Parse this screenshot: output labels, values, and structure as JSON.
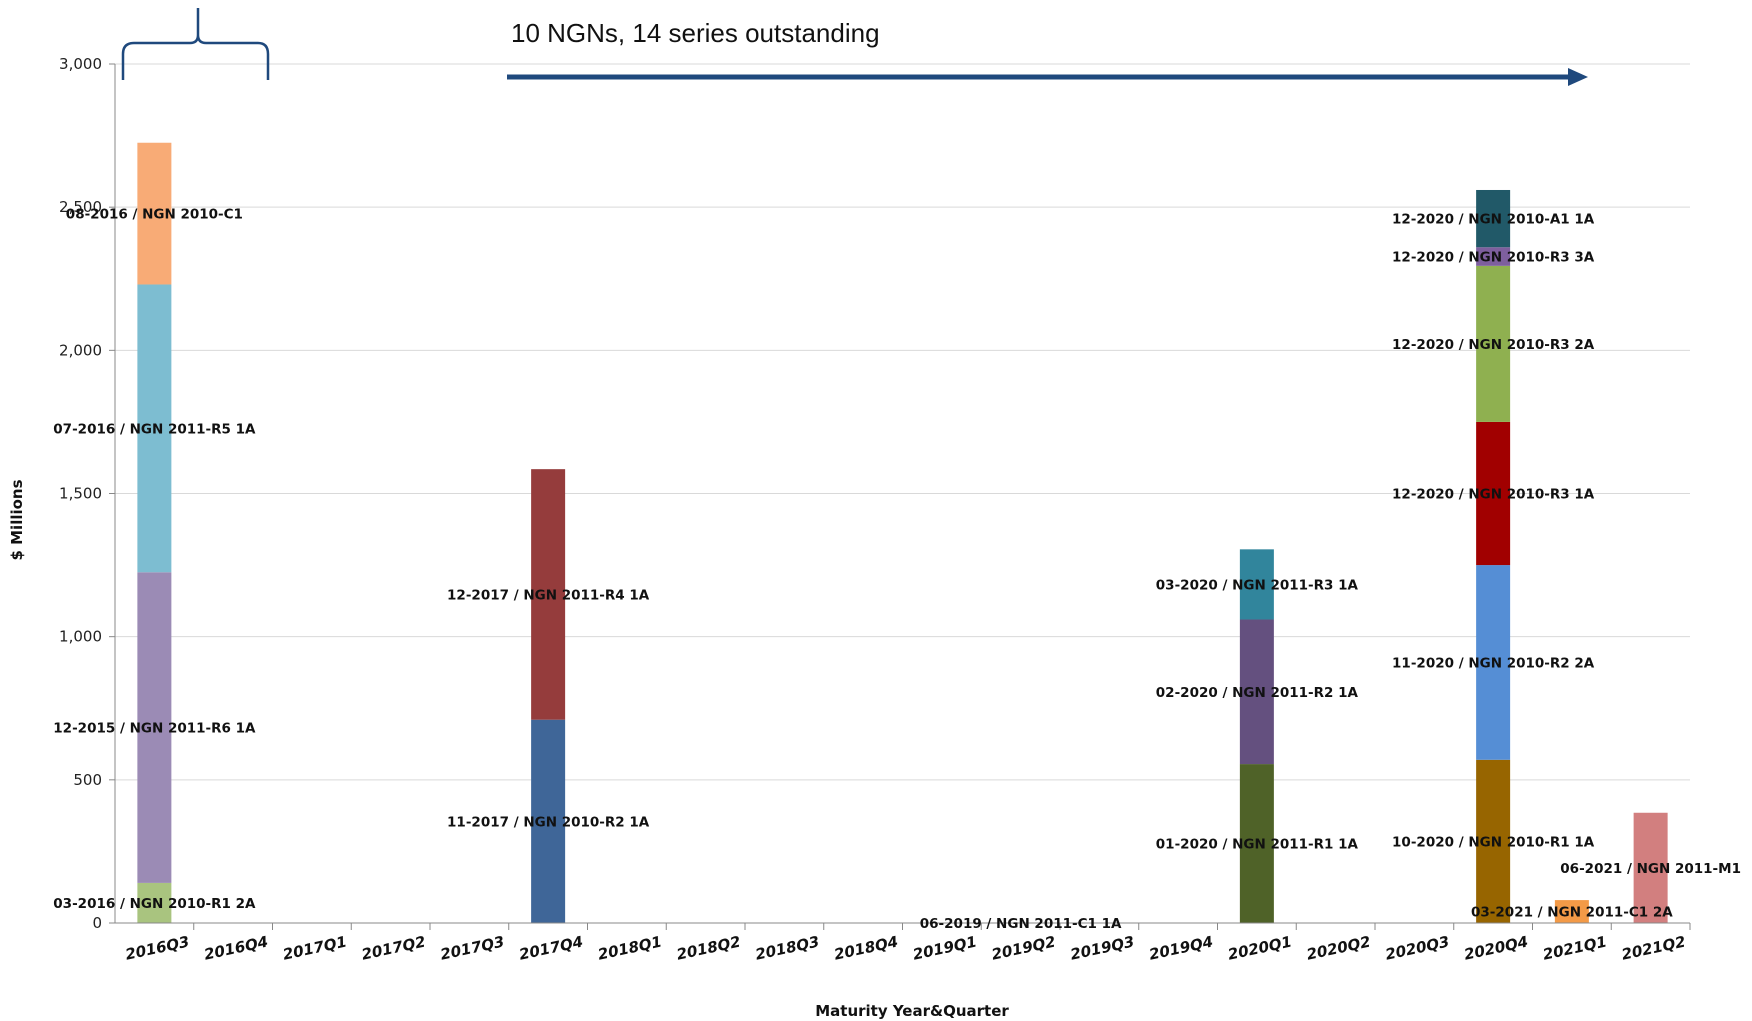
{
  "chart_data": {
    "type": "bar",
    "stacked": true,
    "xlabel": "Maturity Year&Quarter",
    "ylabel": "$ Millions",
    "ylim": [
      0,
      3000
    ],
    "yticks": [
      0,
      500,
      1000,
      1500,
      2000,
      2500,
      3000
    ],
    "ytick_labels": [
      "0",
      "500",
      "1,000",
      "1,500",
      "2,000",
      "2,500",
      "3,000"
    ],
    "grid": true,
    "categories": [
      "2016Q3",
      "2016Q4",
      "2017Q1",
      "2017Q2",
      "2017Q3",
      "2017Q4",
      "2018Q1",
      "2018Q2",
      "2018Q3",
      "2018Q4",
      "2019Q1",
      "2019Q2",
      "2019Q3",
      "2019Q4",
      "2020Q1",
      "2020Q2",
      "2020Q3",
      "2020Q4",
      "2021Q1",
      "2021Q2"
    ],
    "stacks": [
      {
        "category": "2016Q3",
        "segments": [
          {
            "label": "03-2016 / NGN 2010-R1 2A",
            "value": 140,
            "color": "#a9c47f"
          },
          {
            "label": "12-2015 / NGN 2011-R6 1A",
            "value": 1085,
            "color": "#9b8bb5"
          },
          {
            "label": "07-2016 / NGN 2011-R5 1A",
            "value": 1005,
            "color": "#7dbdd1"
          },
          {
            "label": "08-2016 / NGN 2010-C1",
            "value": 495,
            "color": "#f8ab76"
          }
        ]
      },
      {
        "category": "2017Q4",
        "segments": [
          {
            "label": "11-2017 / NGN 2010-R2 1A",
            "value": 710,
            "color": "#3f6698"
          },
          {
            "label": "12-2017 / NGN 2011-R4 1A",
            "value": 875,
            "color": "#953c3c"
          }
        ]
      },
      {
        "category": "2019Q2",
        "segments": [
          {
            "label": "06-2019 / NGN 2011-C1 1A",
            "value": 0,
            "color": "#c0c0c0"
          }
        ]
      },
      {
        "category": "2020Q1",
        "segments": [
          {
            "label": "01-2020 / NGN 2011-R1 1A",
            "value": 555,
            "color": "#4f6228"
          },
          {
            "label": "02-2020 / NGN 2011-R2 1A",
            "value": 505,
            "color": "#64507f"
          },
          {
            "label": "03-2020 / NGN 2011-R3 1A",
            "value": 245,
            "color": "#31859c"
          }
        ]
      },
      {
        "category": "2020Q4",
        "segments": [
          {
            "label": "10-2020 / NGN 2010-R1 1A",
            "value": 570,
            "color": "#976500"
          },
          {
            "label": "11-2020 / NGN 2010-R2 2A",
            "value": 680,
            "color": "#558ed5"
          },
          {
            "label": "12-2020 / NGN 2010-R3 1A",
            "value": 500,
            "color": "#a10000"
          },
          {
            "label": "12-2020 / NGN 2010-R3 2A",
            "value": 545,
            "color": "#8fb050"
          },
          {
            "label": "12-2020 / NGN 2010-R3 3A",
            "value": 65,
            "color": "#7e5f9e"
          },
          {
            "label": "12-2020 / NGN 2010-A1 1A",
            "value": 200,
            "color": "#215968"
          }
        ]
      },
      {
        "category": "2021Q1",
        "segments": [
          {
            "label": "03-2021 / NGN 2011-C1 2A",
            "value": 80,
            "color": "#f39a47"
          }
        ]
      },
      {
        "category": "2021Q2",
        "segments": [
          {
            "label": "06-2021 / NGN 2011-M1",
            "value": 385,
            "color": "#d27f7f"
          }
        ]
      }
    ],
    "annotation": {
      "text": "10 NGNs, 14 series outstanding",
      "arrow_color": "#1f497d",
      "brace_color": "#1f497d"
    }
  }
}
